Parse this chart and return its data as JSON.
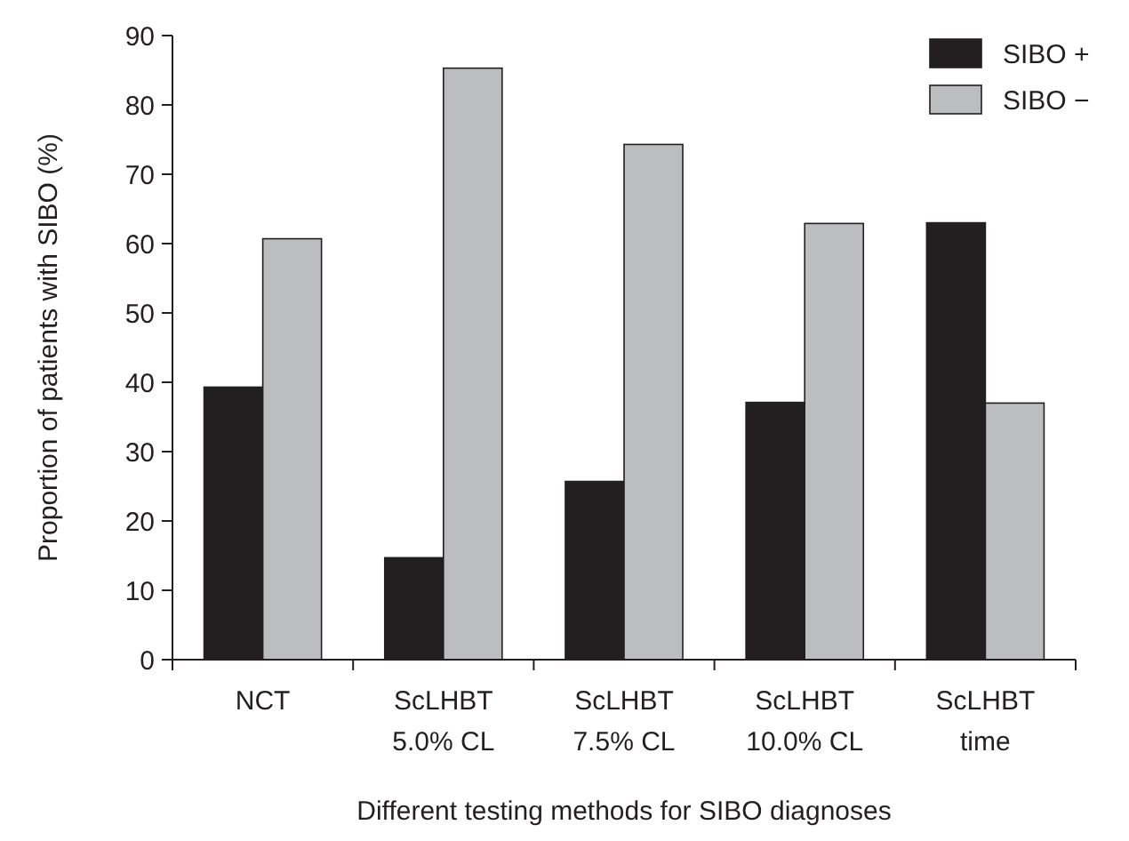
{
  "chart_data": {
    "type": "bar",
    "xlabel": "Different testing methods for SIBO diagnoses",
    "ylabel": "Proportion of patients with SIBO (%)",
    "categories": [
      "NCT",
      "ScLHBT\n5.0% CL",
      "ScLHBT\n7.5% CL",
      "ScLHBT\n10.0% CL",
      "ScLHBT\ntime"
    ],
    "series": [
      {
        "name": "SIBO +",
        "color": "#231f20",
        "values": [
          39.3,
          14.7,
          25.7,
          37.1,
          63.0
        ]
      },
      {
        "name": "SIBO −",
        "color": "#bcbdc0",
        "values": [
          60.7,
          85.3,
          74.3,
          62.9,
          37.0
        ]
      }
    ],
    "ylim": [
      0,
      90
    ],
    "yticks": [
      0,
      10,
      20,
      30,
      40,
      50,
      60,
      70,
      80,
      90
    ],
    "grid": false,
    "legend": "top right"
  }
}
